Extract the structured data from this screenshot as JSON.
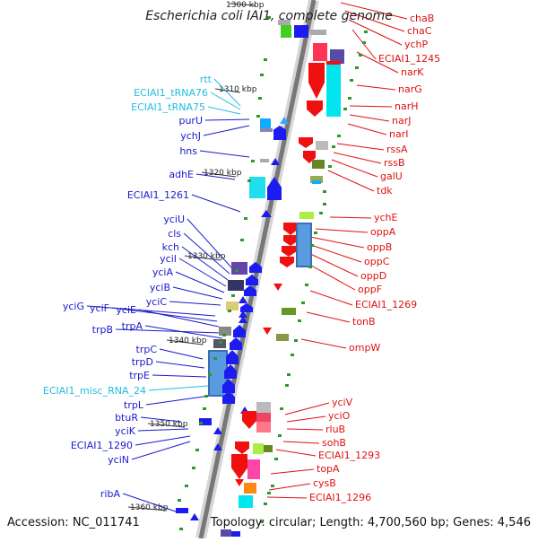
{
  "title": "Escherichia coli IAI1, complete genome",
  "accession": "Accession: NC_011741",
  "topology": "Topology: circular; Length: 4,700,560 bp; Genes: 4,546",
  "colors": {
    "label_blue": "#1a1acc",
    "label_cyan": "#22bde0",
    "label_red": "#e01010",
    "feature_blue": "#1c1cf0",
    "feature_red": "#f01010"
  },
  "ticks": [
    "1300 kbp",
    "1310 kbp",
    "1320 kbp",
    "1330 kbp",
    "1340 kbp",
    "1350 kbp",
    "1360 kbp"
  ],
  "left_labels": [
    {
      "text": "rtt",
      "kind": "cyan"
    },
    {
      "text": "ECIAI1_tRNA76",
      "kind": "cyan"
    },
    {
      "text": "ECIAI1_tRNA75",
      "kind": "cyan"
    },
    {
      "text": "purU",
      "kind": "blue"
    },
    {
      "text": "ychJ",
      "kind": "blue"
    },
    {
      "text": "hns",
      "kind": "blue"
    },
    {
      "text": "adhE",
      "kind": "blue"
    },
    {
      "text": "ECIAI1_1261",
      "kind": "blue"
    },
    {
      "text": "yciU",
      "kind": "blue"
    },
    {
      "text": "cls",
      "kind": "blue"
    },
    {
      "text": "kch",
      "kind": "blue"
    },
    {
      "text": "yciI",
      "kind": "blue"
    },
    {
      "text": "yciA",
      "kind": "blue"
    },
    {
      "text": "yciB",
      "kind": "blue"
    },
    {
      "text": "yciC",
      "kind": "blue"
    },
    {
      "text": "yciG",
      "kind": "blue"
    },
    {
      "text": "yciF",
      "kind": "blue"
    },
    {
      "text": "yciE",
      "kind": "blue"
    },
    {
      "text": "trpB",
      "kind": "blue"
    },
    {
      "text": "trpA",
      "kind": "blue"
    },
    {
      "text": "trpC",
      "kind": "blue"
    },
    {
      "text": "trpD",
      "kind": "blue"
    },
    {
      "text": "trpE",
      "kind": "blue"
    },
    {
      "text": "ECIAI1_misc_RNA_24",
      "kind": "cyan"
    },
    {
      "text": "trpL",
      "kind": "blue"
    },
    {
      "text": "btuR",
      "kind": "blue"
    },
    {
      "text": "yciK",
      "kind": "blue"
    },
    {
      "text": "ECIAI1_1290",
      "kind": "blue"
    },
    {
      "text": "yciN",
      "kind": "blue"
    },
    {
      "text": "ribA",
      "kind": "blue"
    }
  ],
  "right_labels": [
    "chaB",
    "chaC",
    "ychP",
    "ECIAI1_1245",
    "narK",
    "narG",
    "narH",
    "narJ",
    "narI",
    "rssA",
    "rssB",
    "galU",
    "tdk",
    "ychE",
    "oppA",
    "oppB",
    "oppC",
    "oppD",
    "oppF",
    "ECIAI1_1269",
    "tonB",
    "ompW",
    "yciV",
    "yciO",
    "rluB",
    "sohB",
    "ECIAI1_1293",
    "topA",
    "cysB",
    "ECIAI1_1296"
  ]
}
